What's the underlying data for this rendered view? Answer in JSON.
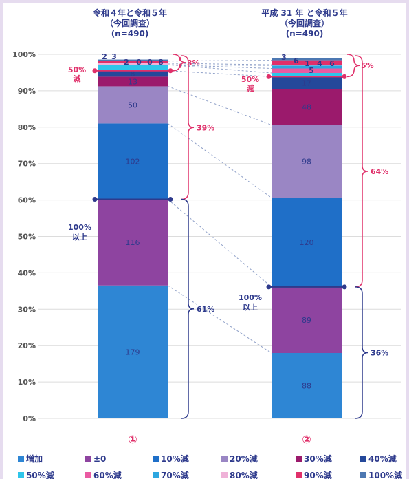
{
  "chart_data": {
    "type": "bar",
    "stacked": true,
    "y_axis": {
      "ticks": [
        "0%",
        "10%",
        "20%",
        "30%",
        "40%",
        "50%",
        "60%",
        "70%",
        "80%",
        "90%",
        "100%"
      ],
      "ylim": [
        0,
        100
      ],
      "grid": true
    },
    "categories": [
      {
        "title_lines": [
          "令和４年と令和５年",
          "（今回調査）",
          "(n=490)"
        ],
        "marker": "①",
        "total": 490,
        "segments": [
          {
            "series": "増加",
            "value": 179
          },
          {
            "series": "±0",
            "value": 116
          },
          {
            "series": "10%減",
            "value": 102
          },
          {
            "series": "20%減",
            "value": 50
          },
          {
            "series": "30%減",
            "value": 13
          },
          {
            "series": "40%減",
            "value": 8
          },
          {
            "series": "50%減",
            "value": 8
          },
          {
            "series": "60%減",
            "value": 0
          },
          {
            "series": "70%減",
            "value": 0
          },
          {
            "series": "80%減",
            "value": 2
          },
          {
            "series": "90%減",
            "value": 3
          },
          {
            "series": "100%減",
            "value": 2
          }
        ],
        "brackets": [
          {
            "text": "3%",
            "color": "red"
          },
          {
            "text": "39%",
            "color": "red"
          },
          {
            "text": "61%",
            "color": "blue"
          }
        ],
        "side_labels": [
          "50%",
          "減",
          "100%",
          "以上"
        ]
      },
      {
        "title_lines": [
          "平成 31 年 と令和５年",
          "（今回調査）",
          "(n=490)"
        ],
        "marker": "②",
        "total": 490,
        "segments": [
          {
            "series": "増加",
            "value": 88
          },
          {
            "series": "±0",
            "value": 89
          },
          {
            "series": "10%減",
            "value": 120
          },
          {
            "series": "20%減",
            "value": 98
          },
          {
            "series": "30%減",
            "value": 48
          },
          {
            "series": "40%減",
            "value": 17
          },
          {
            "series": "50%減",
            "value": 5
          },
          {
            "series": "60%減",
            "value": 6
          },
          {
            "series": "70%減",
            "value": 4
          },
          {
            "series": "80%減",
            "value": 1
          },
          {
            "series": "90%減",
            "value": 6
          },
          {
            "series": "100%減",
            "value": 3
          }
        ],
        "brackets": [
          {
            "text": "5%",
            "color": "red"
          },
          {
            "text": "64%",
            "color": "red"
          },
          {
            "text": "36%",
            "color": "blue"
          }
        ],
        "side_labels": [
          "50%",
          "減",
          "100%",
          "以上"
        ]
      }
    ],
    "legend": {
      "placement": "bottom",
      "items": [
        {
          "label": "増加",
          "color": "#2e86d4"
        },
        {
          "label": "±0",
          "color": "#8e44a0"
        },
        {
          "label": "10%減",
          "color": "#1f6fc8"
        },
        {
          "label": "20%減",
          "color": "#9a86c4"
        },
        {
          "label": "30%減",
          "color": "#9b1a6c"
        },
        {
          "label": "40%減",
          "color": "#24489a"
        },
        {
          "label": "50%減",
          "color": "#2ec5ea"
        },
        {
          "label": "60%減",
          "color": "#ea5aa2"
        },
        {
          "label": "70%減",
          "color": "#2da7e0"
        },
        {
          "label": "80%減",
          "color": "#efb2d8"
        },
        {
          "label": "90%減",
          "color": "#e0306a"
        },
        {
          "label": "100%減",
          "color": "#4d78b2"
        }
      ]
    }
  }
}
